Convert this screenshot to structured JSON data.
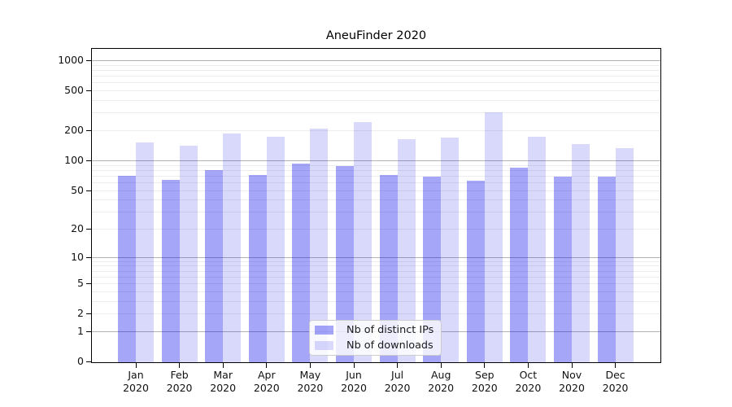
{
  "chart_data": {
    "type": "bar",
    "title": "AneuFinder 2020",
    "categories": [
      "Jan 2020",
      "Feb 2020",
      "Mar 2020",
      "Apr 2020",
      "May 2020",
      "Jun 2020",
      "Jul 2020",
      "Aug 2020",
      "Sep 2020",
      "Oct 2020",
      "Nov 2020",
      "Dec 2020"
    ],
    "series": [
      {
        "name": "Nb of distinct IPs",
        "color": "rgba(0,0,235,0.35)",
        "color_solid": "#a6a6f8",
        "values": [
          70,
          63,
          79,
          71,
          93,
          87,
          71,
          69,
          62,
          84,
          68,
          68
        ]
      },
      {
        "name": "Nb of downloads",
        "color": "rgba(0,0,235,0.15)",
        "color_solid": "#d9d9fc",
        "values": [
          151,
          141,
          187,
          173,
          206,
          240,
          163,
          170,
          300,
          173,
          146,
          133
        ]
      }
    ],
    "y_axis": {
      "scale": "log10(value+1)",
      "tick_labels": [
        0,
        1,
        2,
        5,
        10,
        20,
        50,
        100,
        200,
        500,
        1000
      ],
      "minor_gridlines": [
        2,
        3,
        4,
        5,
        6,
        7,
        8,
        9,
        20,
        30,
        40,
        50,
        60,
        70,
        80,
        90,
        200,
        300,
        400,
        500,
        600,
        700,
        800,
        900
      ],
      "major_gridlines": [
        1,
        10,
        100,
        1000
      ],
      "range": [
        0,
        1300
      ]
    },
    "grid": {
      "major_color": "#b3b3b3",
      "minor_color": "#ededed"
    },
    "legend_position": "bottom-center-inside",
    "xlabel": "",
    "ylabel": ""
  }
}
